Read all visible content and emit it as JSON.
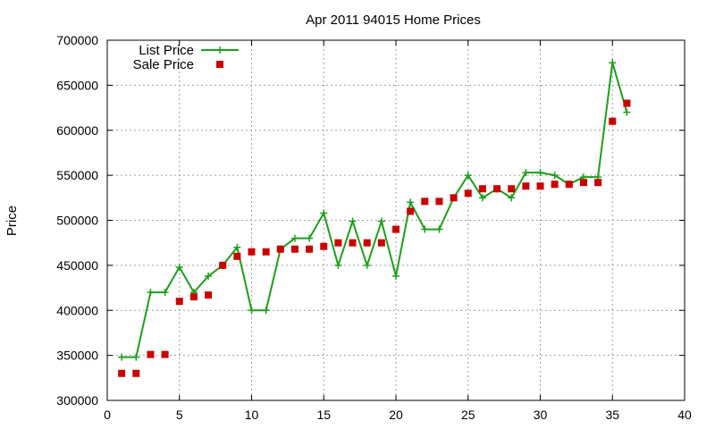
{
  "chart_data": {
    "type": "line",
    "title": "Apr 2011 94015 Home Prices",
    "xlabel": "",
    "ylabel": "Price",
    "xlim": [
      0,
      40
    ],
    "ylim": [
      300000,
      700000
    ],
    "xticks": [
      0,
      5,
      10,
      15,
      20,
      25,
      30,
      35,
      40
    ],
    "yticks": [
      300000,
      350000,
      400000,
      450000,
      500000,
      550000,
      600000,
      650000,
      700000
    ],
    "grid": true,
    "legend_position": "top-left",
    "series": [
      {
        "name": "List Price",
        "style": "line-plus",
        "color": "#1aa01a",
        "x": [
          1,
          2,
          3,
          4,
          5,
          6,
          7,
          8,
          9,
          10,
          11,
          12,
          13,
          14,
          15,
          16,
          17,
          18,
          19,
          20,
          21,
          22,
          23,
          24,
          25,
          26,
          27,
          28,
          29,
          30,
          31,
          32,
          33,
          34,
          35,
          36
        ],
        "values": [
          348000,
          348000,
          420000,
          420000,
          448000,
          420000,
          438000,
          450000,
          470000,
          400000,
          400000,
          468000,
          480000,
          480000,
          508000,
          450000,
          499000,
          450000,
          499000,
          438000,
          520000,
          490000,
          490000,
          525000,
          550000,
          525000,
          535000,
          525000,
          553000,
          553000,
          550000,
          540000,
          548000,
          548000,
          675000,
          620000
        ]
      },
      {
        "name": "Sale Price",
        "style": "square",
        "color": "#cc0000",
        "x": [
          1,
          2,
          3,
          4,
          5,
          6,
          7,
          8,
          9,
          10,
          11,
          12,
          13,
          14,
          15,
          16,
          17,
          18,
          19,
          20,
          21,
          22,
          23,
          24,
          25,
          26,
          27,
          28,
          29,
          30,
          31,
          32,
          33,
          34,
          35,
          36
        ],
        "values": [
          330000,
          330000,
          351000,
          351000,
          410000,
          415000,
          417000,
          450000,
          460000,
          465000,
          465000,
          468000,
          468000,
          468000,
          471000,
          475000,
          475000,
          475000,
          475000,
          490000,
          510000,
          521000,
          521000,
          525000,
          530000,
          535000,
          535000,
          535000,
          538000,
          538000,
          540000,
          540000,
          542000,
          542000,
          610000,
          630000
        ]
      }
    ]
  }
}
